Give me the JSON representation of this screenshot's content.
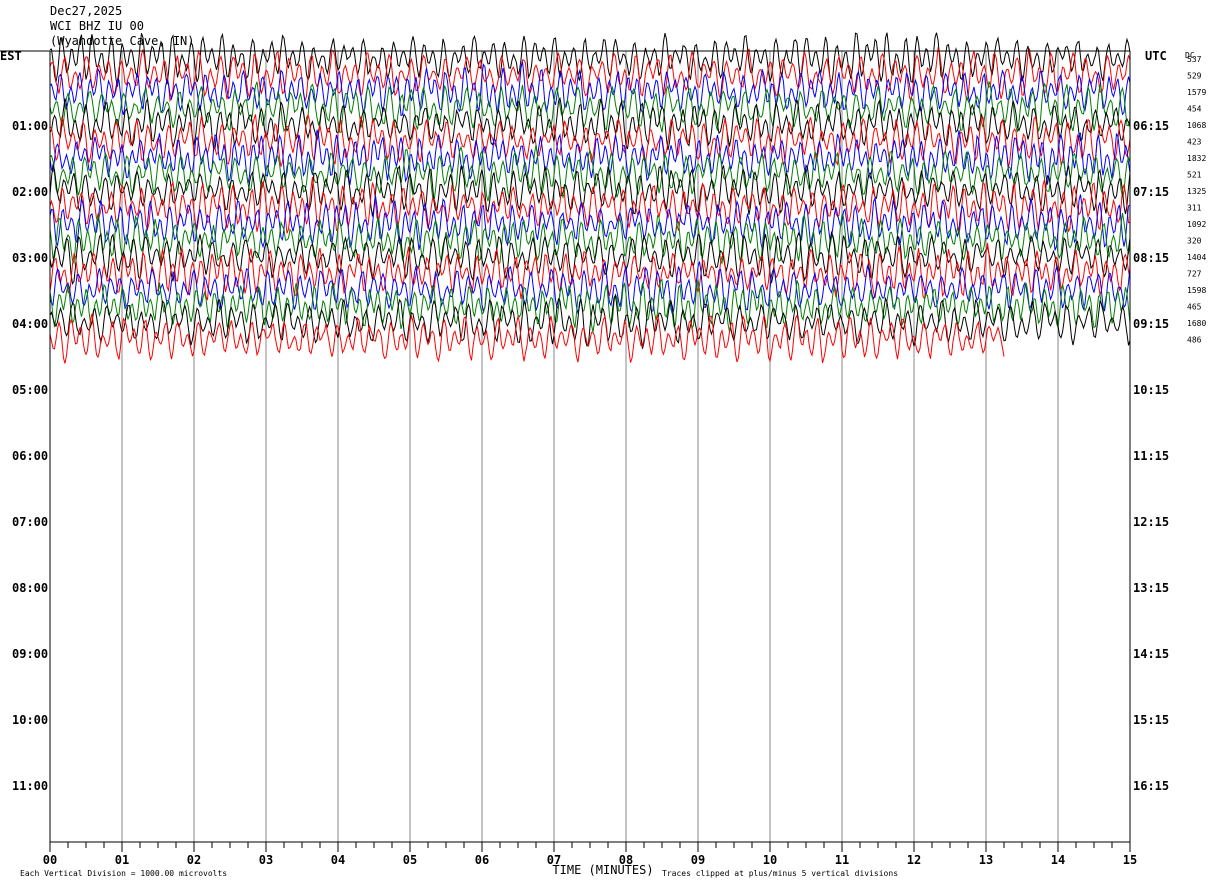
{
  "header": {
    "date": "Dec27,2025",
    "station": "WCI BHZ IU 00",
    "location": "(Wyandotte Cave, IN)"
  },
  "chart_data": {
    "type": "line",
    "title": "",
    "xlabel": "TIME (MINUTES)",
    "ylabel": "",
    "x_ticks": [
      "00",
      "01",
      "02",
      "03",
      "04",
      "05",
      "06",
      "07",
      "08",
      "09",
      "10",
      "11",
      "12",
      "13",
      "14",
      "15"
    ],
    "xlim": [
      0,
      15
    ],
    "left_axis_title": "EST",
    "right_axis_title": "UTC",
    "left_hour_labels": [
      "01:00",
      "02:00",
      "03:00",
      "04:00",
      "05:00",
      "06:00",
      "07:00",
      "08:00",
      "09:00",
      "10:00",
      "11:00"
    ],
    "right_hour_labels": [
      "06:15",
      "07:15",
      "08:15",
      "09:15",
      "10:15",
      "11:15",
      "12:15",
      "13:15",
      "14:15",
      "15:15",
      "16:15"
    ],
    "dc_title": "DC",
    "dc_offsets": [
      "537",
      "529",
      "1579",
      "454",
      "1068",
      "423",
      "1832",
      "521",
      "1325",
      "311",
      "1092",
      "320",
      "1404",
      "727",
      "1598",
      "465",
      "1680",
      "486"
    ],
    "trace_colors": [
      "#000000",
      "#ff0000",
      "#0000ff",
      "#008000"
    ],
    "trace_count": 18,
    "footer_left": "Each Vertical Division = 1000.00 microvolts",
    "footer_right": "Traces clipped at plus/minus 5 vertical divisions"
  }
}
